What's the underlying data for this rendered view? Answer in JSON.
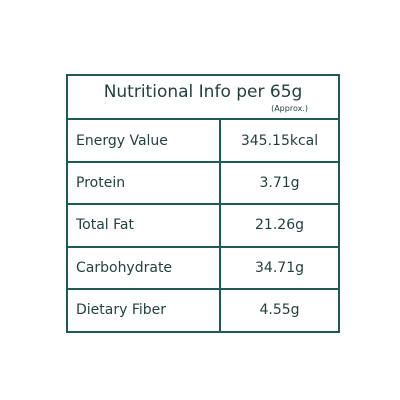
{
  "header": {
    "title": "Nutritional Info per 65g",
    "note": "(Approx.)"
  },
  "table": {
    "rows": [
      [
        "Energy Value",
        "345.15kcal"
      ],
      [
        "Protein",
        "3.71g"
      ],
      [
        "Total Fat",
        "21.26g"
      ],
      [
        "Carbohydrate",
        "34.71g"
      ],
      [
        "Dietary Fiber",
        "4.55g"
      ]
    ]
  }
}
